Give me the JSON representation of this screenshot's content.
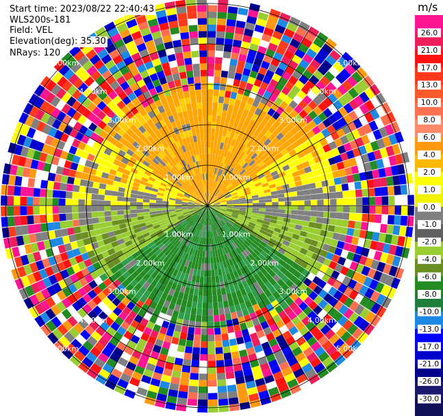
{
  "header": {
    "start_time": "Start time: 2023/08/22 22:40:43",
    "instrument": "WLS200s-181",
    "field": "Field: VEL",
    "elevation": "Elevation(deg): 35.30",
    "nrays": "NRays: 120"
  },
  "colorbar": {
    "unit": "m/s",
    "ticks": [
      "26.0",
      "21.0",
      "17.0",
      "13.0",
      "10.0",
      "8.0",
      "6.0",
      "4.0",
      "2.0",
      "1.0",
      "0.0",
      "-1.0",
      "-2.0",
      "-4.0",
      "-6.0",
      "-8.0",
      "-10.0",
      "-13.0",
      "-17.0",
      "-21.0",
      "-26.0",
      "-30.0"
    ],
    "colors": [
      "#ff1493",
      "#ee1e5a",
      "#ff1111",
      "#ff3a1a",
      "#ff5a2a",
      "#ff7050",
      "#ff8a6a",
      "#ff9a10",
      "#ffb800",
      "#ffff00",
      "#f2f200",
      "#808080",
      "#606060",
      "#9acd32",
      "#6b8e23",
      "#228b22",
      "#1e7f3a",
      "#1e88e5",
      "#0000ff",
      "#0000cd",
      "#00008b",
      "#191970",
      "#10105a"
    ]
  },
  "chart_data": {
    "type": "heatmap",
    "subtype": "ppi-radial-velocity",
    "field": "VEL",
    "units": "m/s",
    "elevation_deg": 35.3,
    "nrays": 120,
    "range_ring_labels": [
      "1.00km",
      "2.00km",
      "3.00km",
      "4.00km",
      "5.00km"
    ],
    "azimuth_spoke_step_deg": 30,
    "pattern": [
      {
        "sector": "north (approx 300-60 deg)",
        "range": "0-3 km",
        "velocity_mps": 4.5,
        "color_class": "orange"
      },
      {
        "sector": "north-east / north-west flanks",
        "range": "0-3 km",
        "velocity_mps": 2.5,
        "color_class": "yellow"
      },
      {
        "sector": "east and west (approx 60-120 and 240-300 deg)",
        "range": "0-3 km",
        "velocity_mps": 0.0,
        "color_class": "gray"
      },
      {
        "sector": "south-east / south-west",
        "range": "0-3 km",
        "velocity_mps": -2.5,
        "color_class": "yellow-green"
      },
      {
        "sector": "south (approx 120-240 deg)",
        "range": "0-4 km",
        "velocity_mps": -5.0,
        "color_class": "green"
      },
      {
        "sector": "all",
        "range": "beyond approx 3-4 km",
        "velocity_mps": null,
        "color_class": "noise (random colors)"
      }
    ]
  }
}
